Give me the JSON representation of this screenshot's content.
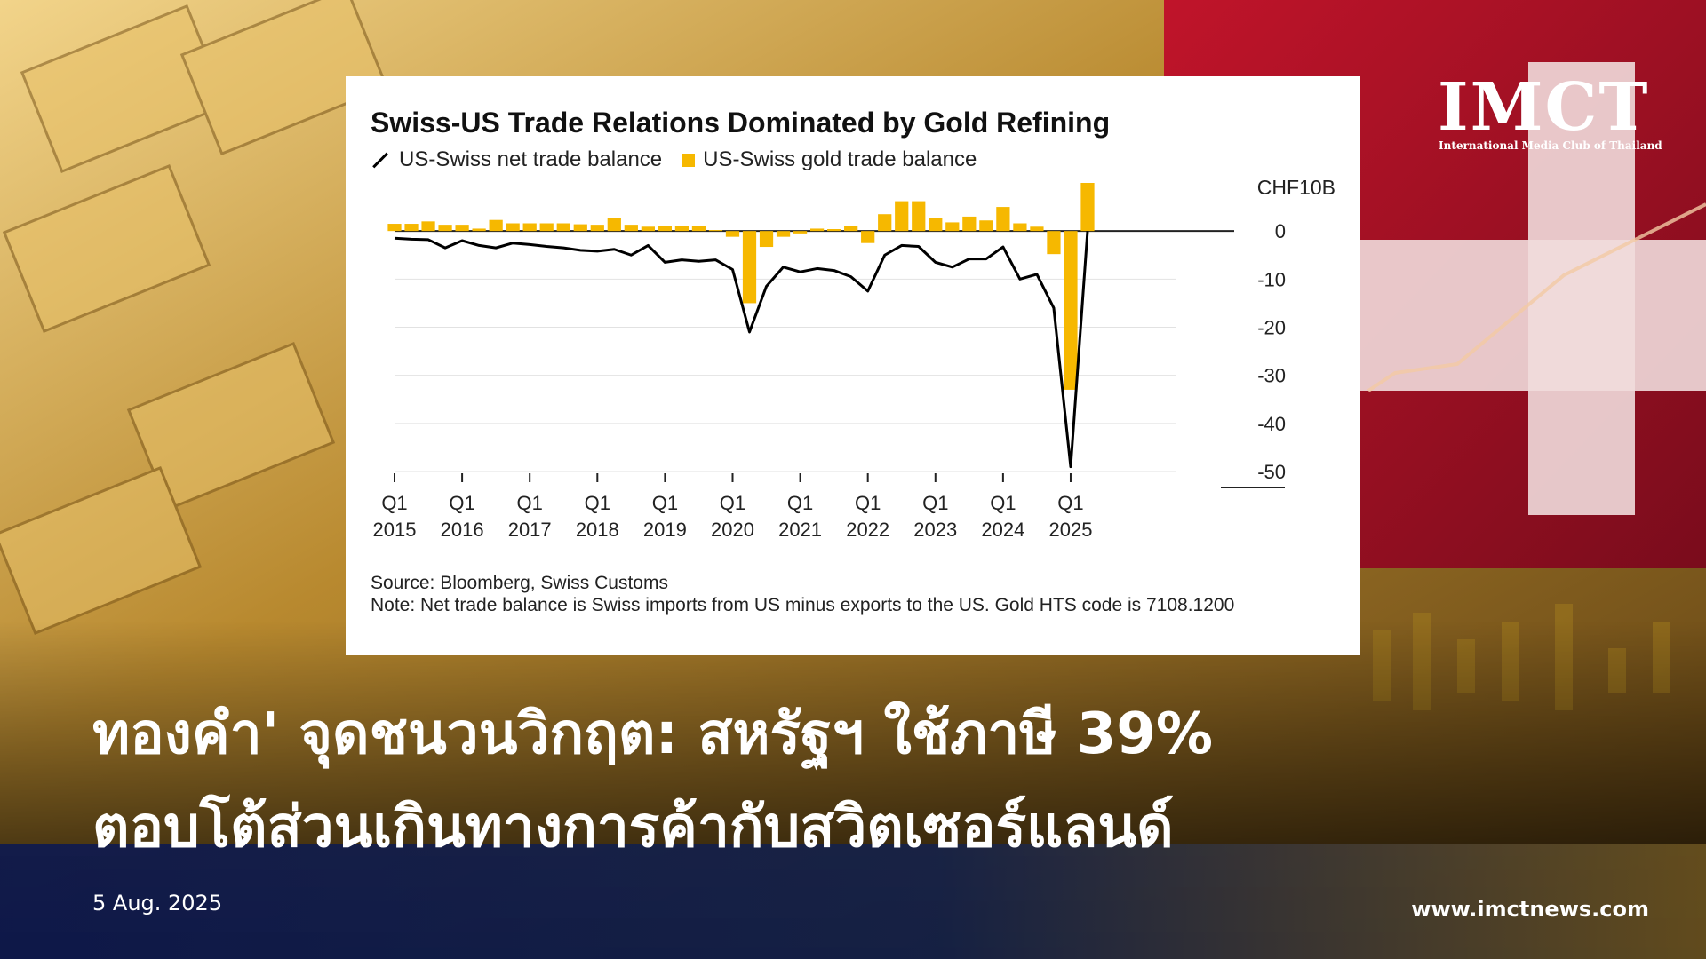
{
  "chart_data": {
    "type": "bar",
    "title": "Swiss-US Trade Relations Dominated by Gold Refining",
    "unit_label": "CHF10B",
    "series": [
      {
        "name": "US-Swiss net trade balance",
        "kind": "line",
        "color": "#000000",
        "x": [
          2015.0,
          2015.25,
          2015.5,
          2015.75,
          2016.0,
          2016.25,
          2016.5,
          2016.75,
          2017.0,
          2017.25,
          2017.5,
          2017.75,
          2018.0,
          2018.25,
          2018.5,
          2018.75,
          2019.0,
          2019.25,
          2019.5,
          2019.75,
          2020.0,
          2020.25,
          2020.5,
          2020.75,
          2021.0,
          2021.25,
          2021.5,
          2021.75,
          2022.0,
          2022.25,
          2022.5,
          2022.75,
          2023.0,
          2023.25,
          2023.5,
          2023.75,
          2024.0,
          2024.25,
          2024.5,
          2024.75,
          2025.0,
          2025.25
        ],
        "values": [
          -1.5,
          -1.7,
          -1.8,
          -3.5,
          -2.0,
          -3.0,
          -3.5,
          -2.5,
          -2.8,
          -3.2,
          -3.5,
          -4.0,
          -4.2,
          -3.8,
          -5.0,
          -3.0,
          -6.5,
          -6.0,
          -6.3,
          -6.0,
          -8.0,
          -21.0,
          -11.5,
          -7.5,
          -8.5,
          -7.8,
          -8.2,
          -9.5,
          -12.5,
          -5.0,
          -3.0,
          -3.2,
          -6.5,
          -7.5,
          -5.8,
          -5.8,
          -3.3,
          -10.0,
          -9.0,
          -16.0,
          -49.0,
          0.0
        ]
      },
      {
        "name": "US-Swiss gold trade balance",
        "kind": "bar",
        "color": "#f6b800",
        "x": [
          2015.0,
          2015.25,
          2015.5,
          2015.75,
          2016.0,
          2016.25,
          2016.5,
          2016.75,
          2017.0,
          2017.25,
          2017.5,
          2017.75,
          2018.0,
          2018.25,
          2018.5,
          2018.75,
          2019.0,
          2019.25,
          2019.5,
          2019.75,
          2020.0,
          2020.25,
          2020.5,
          2020.75,
          2021.0,
          2021.25,
          2021.5,
          2021.75,
          2022.0,
          2022.25,
          2022.5,
          2022.75,
          2023.0,
          2023.25,
          2023.5,
          2023.75,
          2024.0,
          2024.25,
          2024.5,
          2024.75,
          2025.0,
          2025.25
        ],
        "values": [
          1.5,
          1.5,
          2.0,
          1.3,
          1.3,
          0.5,
          2.3,
          1.6,
          1.6,
          1.6,
          1.6,
          1.4,
          1.3,
          2.8,
          1.3,
          0.9,
          1.1,
          1.1,
          1.0,
          0.2,
          -1.2,
          -15.0,
          -3.3,
          -1.2,
          -0.5,
          0.5,
          0.4,
          1.0,
          -2.5,
          3.5,
          6.2,
          6.2,
          2.8,
          1.8,
          3.0,
          2.2,
          5.0,
          1.6,
          0.9,
          -4.8,
          -33.0,
          10.0
        ]
      }
    ],
    "ylim": [
      -50,
      10
    ],
    "y_ticks": [
      0,
      -10,
      -20,
      -30,
      -40,
      -50
    ],
    "y_tick_labels": [
      "0",
      "-10",
      "-20",
      "-30",
      "-40",
      "-50"
    ],
    "x_ticks": [
      2015,
      2016,
      2017,
      2018,
      2019,
      2020,
      2021,
      2022,
      2023,
      2024,
      2025
    ],
    "x_tick_labels": [
      [
        "Q1",
        "2015"
      ],
      [
        "Q1",
        "2016"
      ],
      [
        "Q1",
        "2017"
      ],
      [
        "Q1",
        "2018"
      ],
      [
        "Q1",
        "2019"
      ],
      [
        "Q1",
        "2020"
      ],
      [
        "Q1",
        "2021"
      ],
      [
        "Q1",
        "2022"
      ],
      [
        "Q1",
        "2023"
      ],
      [
        "Q1",
        "2024"
      ],
      [
        "Q1",
        "2025"
      ]
    ],
    "grid": true,
    "legend_position": "top-left",
    "source": "Source: Bloomberg, Swiss Customs",
    "note": "Note: Net trade balance is Swiss imports from US minus exports to the US. Gold HTS code is 7108.1200"
  },
  "headline": {
    "line1": "ทองคำ' จุดชนวนวิกฤต: สหรัฐฯ ใช้ภาษี 39%",
    "line2": "ตอบโต้ส่วนเกินทางการค้ากับสวิตเซอร์แลนด์"
  },
  "date": "5  Aug. 2025",
  "website": "www.imctnews.com",
  "logo": {
    "main": "IMCT",
    "sub": "International Media Club of Thailand"
  },
  "colors": {
    "gold_bar": "#f6b800",
    "swiss_red": "#b5122a",
    "footer_navy": "#0f1c4e"
  }
}
